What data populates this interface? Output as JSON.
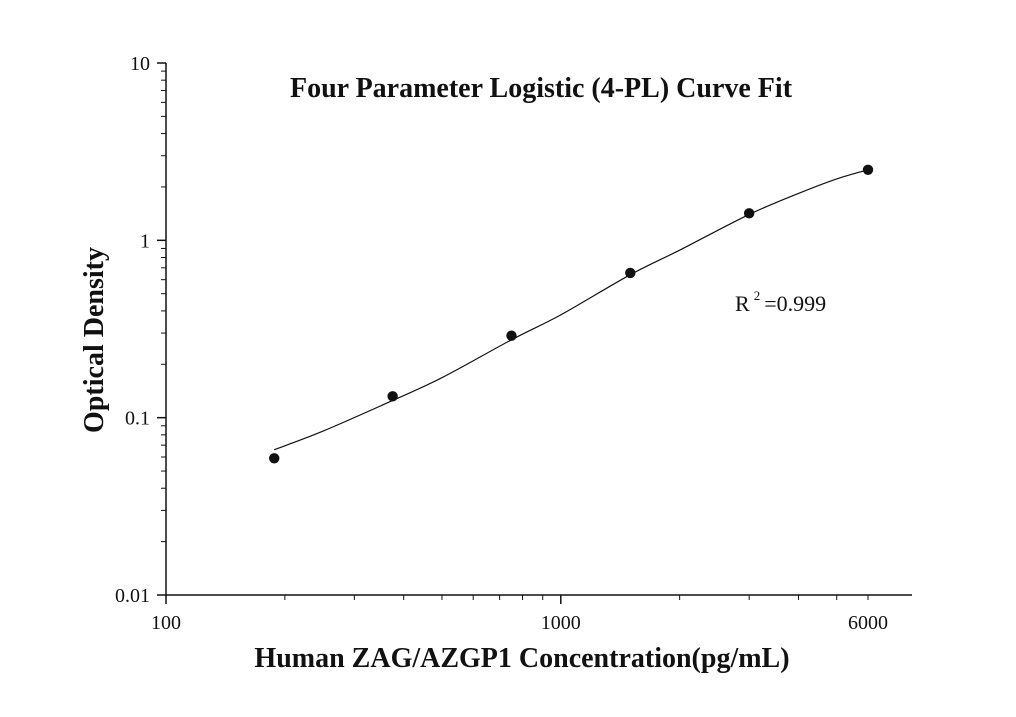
{
  "chart_data": {
    "type": "scatter",
    "title": "Four Parameter Logistic (4-PL) Curve Fit",
    "xlabel": "Human ZAG/AZGP1 Concentration(pg/mL)",
    "ylabel": "Optical Density",
    "xscale": "log",
    "yscale": "log",
    "xlim": [
      100,
      6000
    ],
    "ylim": [
      0.01,
      10
    ],
    "x_tick_labels": [
      "100",
      "1000",
      "6000"
    ],
    "y_tick_labels": [
      "0.01",
      "0.1",
      "1",
      "10"
    ],
    "grid": false,
    "series": [
      {
        "x": [
          188,
          375,
          750,
          1500,
          3000,
          6000
        ],
        "y": [
          0.059,
          0.132,
          0.29,
          0.655,
          1.42,
          2.5
        ]
      }
    ],
    "fit_curve": {
      "x": [
        188,
        250,
        375,
        500,
        750,
        1000,
        1500,
        2000,
        3000,
        4000,
        5000,
        6000
      ],
      "y": [
        0.066,
        0.084,
        0.125,
        0.168,
        0.275,
        0.38,
        0.64,
        0.88,
        1.4,
        1.84,
        2.22,
        2.5
      ]
    },
    "annotation": {
      "prefix": "R",
      "superscript": "2",
      "suffix": "=0.999"
    }
  }
}
